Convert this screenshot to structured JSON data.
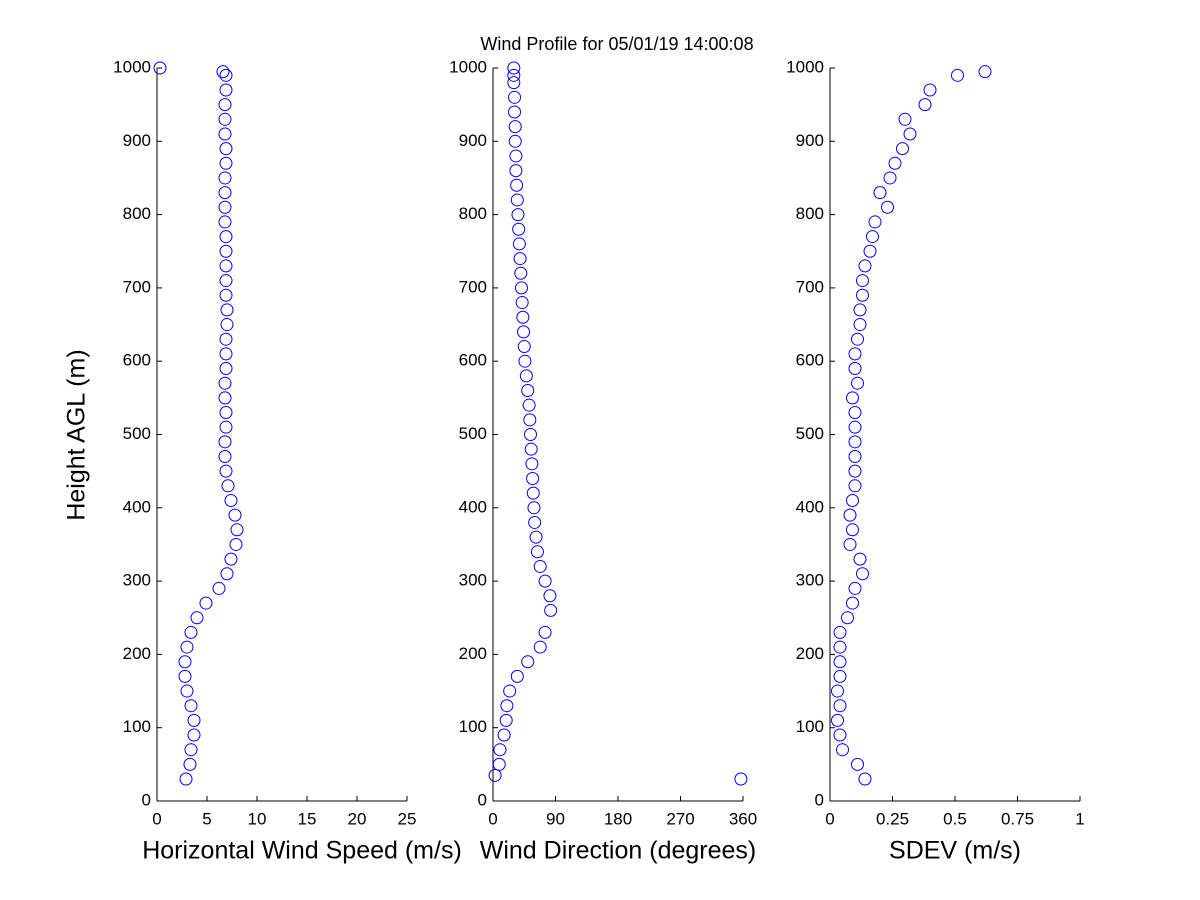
{
  "chart_data": [
    {
      "type": "scatter",
      "title": "Wind Profile for  05/01/19 14:00:08",
      "xlabel": "Horizontal Wind Speed (m/s)",
      "ylabel": "Height AGL (m)",
      "color": "#0000ff",
      "x": [
        2.9,
        3.3,
        3.4,
        3.7,
        3.7,
        3.4,
        3.0,
        2.8,
        2.8,
        3.0,
        3.4,
        4.0,
        4.9,
        6.2,
        7.0,
        7.4,
        7.9,
        8.0,
        7.8,
        7.4,
        7.1,
        6.9,
        6.8,
        6.8,
        6.9,
        6.9,
        6.8,
        6.8,
        6.9,
        6.9,
        6.9,
        7.0,
        7.0,
        6.9,
        6.9,
        6.9,
        6.9,
        6.9,
        6.8,
        6.8,
        6.8,
        6.8,
        6.9,
        6.9,
        6.8,
        6.8,
        6.8,
        6.9,
        6.9,
        6.6,
        0.3
      ],
      "y": [
        30,
        50,
        70,
        90,
        110,
        130,
        150,
        170,
        190,
        210,
        230,
        250,
        270,
        290,
        310,
        330,
        350,
        370,
        390,
        410,
        430,
        450,
        470,
        490,
        510,
        530,
        550,
        570,
        590,
        610,
        630,
        650,
        670,
        690,
        710,
        730,
        750,
        770,
        790,
        810,
        830,
        850,
        870,
        890,
        910,
        930,
        950,
        970,
        990,
        995,
        1000
      ],
      "xlim": [
        0,
        25
      ],
      "xticks": [
        0,
        5,
        10,
        15,
        20,
        25
      ],
      "ylim": [
        0,
        1000
      ],
      "yticks": [
        0,
        100,
        200,
        300,
        400,
        500,
        600,
        700,
        800,
        900,
        1000
      ]
    },
    {
      "type": "scatter",
      "xlabel": "Wind Direction (degrees)",
      "color": "#0000ff",
      "x": [
        3,
        9,
        10,
        16,
        19,
        20,
        24,
        35,
        50,
        68,
        75,
        83,
        82,
        75,
        68,
        64,
        62,
        60,
        59,
        58,
        57,
        56,
        55,
        54,
        53,
        52,
        50,
        48,
        46,
        45,
        44,
        43,
        42,
        41,
        40,
        39,
        38,
        37,
        36,
        35,
        34,
        33,
        33,
        32,
        32,
        31,
        31,
        30,
        30,
        30,
        357
      ],
      "y": [
        35,
        50,
        70,
        90,
        110,
        130,
        150,
        170,
        190,
        210,
        230,
        260,
        280,
        300,
        320,
        340,
        360,
        380,
        400,
        420,
        440,
        460,
        480,
        500,
        520,
        540,
        560,
        580,
        600,
        620,
        640,
        660,
        680,
        700,
        720,
        740,
        760,
        780,
        800,
        820,
        840,
        860,
        880,
        900,
        920,
        940,
        960,
        980,
        990,
        1000,
        30
      ],
      "xlim": [
        0,
        360
      ],
      "xticks": [
        0,
        90,
        180,
        270,
        360
      ],
      "ylim": [
        0,
        1000
      ],
      "yticks": [
        0,
        100,
        200,
        300,
        400,
        500,
        600,
        700,
        800,
        900,
        1000
      ]
    },
    {
      "type": "scatter",
      "xlabel": "SDEV  (m/s)",
      "color": "#0000ff",
      "x": [
        0.14,
        0.11,
        0.05,
        0.04,
        0.03,
        0.04,
        0.03,
        0.04,
        0.04,
        0.04,
        0.04,
        0.07,
        0.09,
        0.1,
        0.13,
        0.12,
        0.08,
        0.09,
        0.08,
        0.09,
        0.1,
        0.1,
        0.1,
        0.1,
        0.1,
        0.1,
        0.09,
        0.11,
        0.1,
        0.1,
        0.11,
        0.12,
        0.12,
        0.13,
        0.13,
        0.14,
        0.16,
        0.17,
        0.18,
        0.23,
        0.2,
        0.24,
        0.26,
        0.29,
        0.32,
        0.3,
        0.38,
        0.4,
        0.51,
        0.62
      ],
      "y": [
        30,
        50,
        70,
        90,
        110,
        130,
        150,
        170,
        190,
        210,
        230,
        250,
        270,
        290,
        310,
        330,
        350,
        370,
        390,
        410,
        430,
        450,
        470,
        490,
        510,
        530,
        550,
        570,
        590,
        610,
        630,
        650,
        670,
        690,
        710,
        730,
        750,
        770,
        790,
        810,
        830,
        850,
        870,
        890,
        910,
        930,
        950,
        970,
        990,
        995
      ],
      "xlim": [
        0,
        1
      ],
      "xticks": [
        0,
        0.25,
        0.5,
        0.75,
        1
      ],
      "ylim": [
        0,
        1000
      ],
      "yticks": [
        0,
        100,
        200,
        300,
        400,
        500,
        600,
        700,
        800,
        900,
        1000
      ]
    }
  ]
}
